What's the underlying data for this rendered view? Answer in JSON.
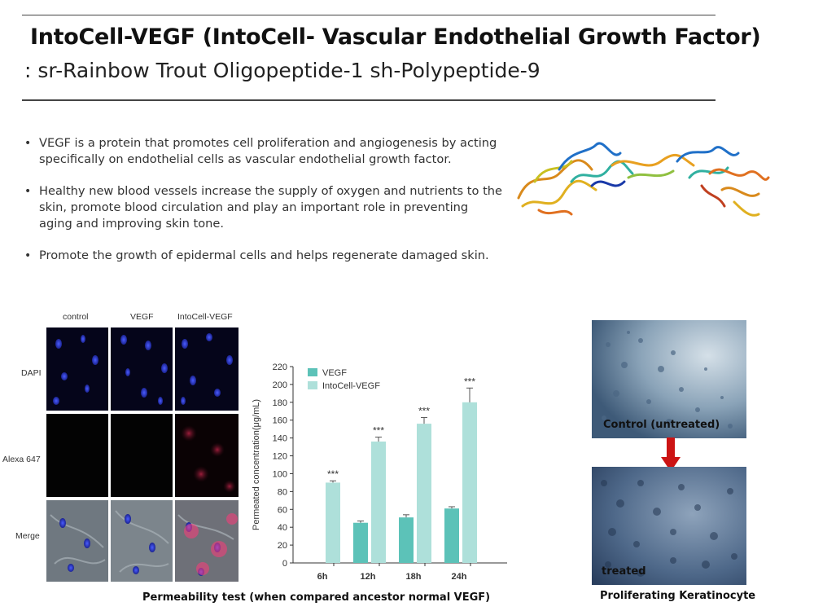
{
  "header": {
    "title_line1": "IntoCell-VEGF (IntoCell- Vascular Endothelial Growth Factor)",
    "title_line2": ": sr-Rainbow Trout Oligopeptide-1 sh-Polypeptide-9"
  },
  "bullets": [
    "VEGF is a protein that promotes cell proliferation and angiogenesis by acting specifically on endothelial cells as vascular endothelial growth factor.",
    "Healthy new blood vessels increase the supply of oxygen and nutrients to the skin, promote blood circulation and play an important role in preventing aging and improving skin tone.",
    "Promote the growth of epidermal cells and helps regenerate damaged skin."
  ],
  "microscopy": {
    "columns": [
      "control",
      "VEGF",
      "IntoCell-VEGF"
    ],
    "rows": [
      "DAPI",
      "Alexa 647",
      "Merge"
    ]
  },
  "chart_data": {
    "type": "bar",
    "categories": [
      "6h",
      "12h",
      "18h",
      "24h"
    ],
    "series": [
      {
        "name": "VEGF",
        "values": [
          0,
          45,
          51,
          61
        ],
        "errors": [
          0,
          2,
          3,
          2
        ],
        "color": "#5cc2b8"
      },
      {
        "name": "IntoCell-VEGF",
        "values": [
          90,
          136,
          156,
          180
        ],
        "errors": [
          2,
          5,
          7,
          16
        ],
        "color": "#aee0da"
      }
    ],
    "annotations": [
      "***",
      "***",
      "***",
      "***"
    ],
    "ylabel": "Permeated concentration(μg/mL)",
    "xlabel": "",
    "ylim": [
      0,
      220
    ],
    "yticks": [
      0,
      20,
      40,
      60,
      80,
      100,
      120,
      140,
      160,
      180,
      200,
      220
    ],
    "legend": "top-left",
    "grid": false
  },
  "captions": {
    "permeability": "Permeability test (when compared ancestor normal VEGF)",
    "control": "Control (untreated)",
    "treated": "treated",
    "proliferating": "Proliferating Keratinocyte"
  },
  "colors": {
    "arrow": "#cc1414",
    "rule": "#444444"
  }
}
